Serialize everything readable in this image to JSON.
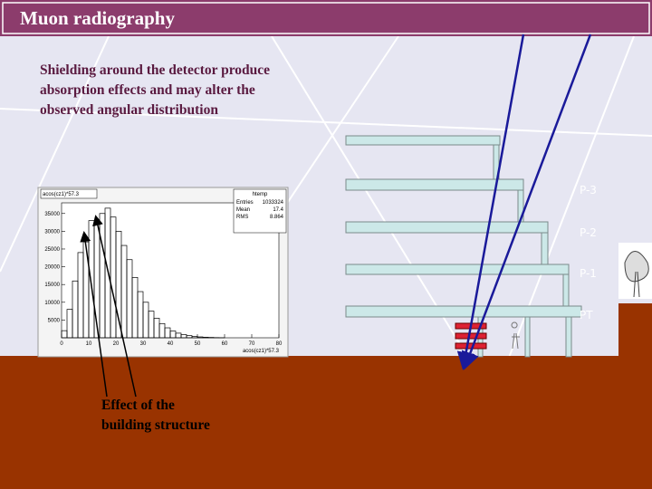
{
  "header": {
    "title": "Muon radiography"
  },
  "body": {
    "lines": [
      "Shielding around the detector produce",
      "absorption effects and may alter the",
      "observed angular distribution"
    ]
  },
  "annotation": {
    "lines": [
      "Effect of the",
      "building structure"
    ]
  },
  "floors": [
    "P-3",
    "P-2",
    "P-1",
    "PT"
  ],
  "histogram": {
    "title": "acos(cz1)*57.3",
    "xlabel": "acos(cz1)*57.3",
    "stats_title": "htemp",
    "stats": [
      {
        "label": "Entries",
        "value": 1033324
      },
      {
        "label": "Mean",
        "value": 17.4
      },
      {
        "label": "RMS",
        "value": 8.864
      }
    ],
    "bins": [
      0,
      2,
      4,
      6,
      8,
      10,
      12,
      14,
      16,
      18,
      20,
      22,
      24,
      26,
      28,
      30,
      32,
      34,
      36,
      38,
      40,
      42,
      44,
      46,
      48,
      50,
      52,
      54,
      56,
      58,
      60
    ],
    "counts": [
      2000,
      8000,
      16000,
      24000,
      27000,
      33000,
      32000,
      35000,
      36500,
      34000,
      30000,
      26000,
      22000,
      17000,
      13000,
      10000,
      7500,
      5500,
      4000,
      2800,
      1900,
      1300,
      900,
      600,
      400,
      250,
      150,
      100,
      50,
      20
    ],
    "xlim": [
      0,
      80
    ],
    "ylim": [
      0,
      38000
    ],
    "xticks": [
      0,
      10,
      20,
      30,
      40,
      50,
      60,
      70,
      80
    ],
    "yticks": [
      5000,
      10000,
      15000,
      20000,
      25000,
      30000,
      35000
    ]
  }
}
